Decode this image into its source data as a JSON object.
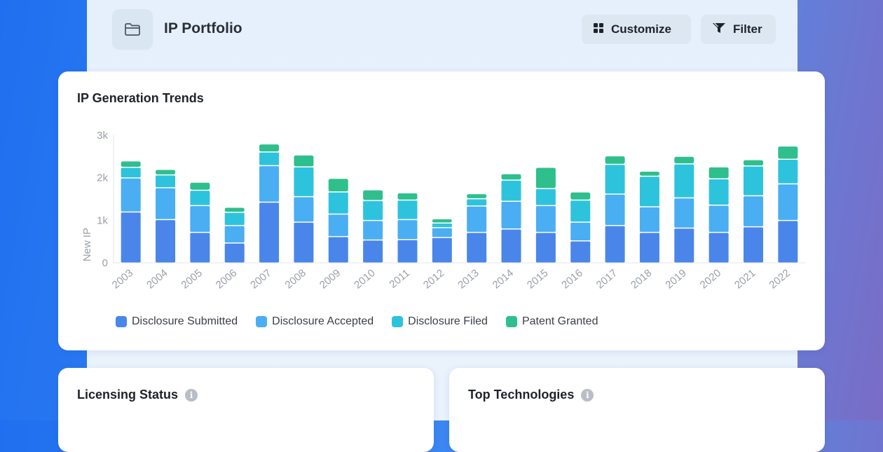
{
  "header": {
    "title": "IP Portfolio",
    "icon": "folder-icon",
    "buttons": {
      "customize_label": "Customize",
      "customize_icon": "grid-icon",
      "filter_label": "Filter",
      "filter_icon": "funnel-icon"
    }
  },
  "trend_card": {
    "title": "IP Generation Trends"
  },
  "chart_data": {
    "type": "bar",
    "stacked": true,
    "title": "IP Generation Trends",
    "ylabel": "New IP",
    "xlabel": "",
    "ylim": [
      0,
      3000
    ],
    "yticks": [
      "0",
      "1k",
      "2k",
      "3k"
    ],
    "ytick_values": [
      0,
      1000,
      2000,
      3000
    ],
    "grid": false,
    "legend_position": "bottom-left",
    "categories": [
      "2003",
      "2004",
      "2005",
      "2006",
      "2007",
      "2008",
      "2009",
      "2010",
      "2011",
      "2012",
      "2013",
      "2014",
      "2015",
      "2016",
      "2017",
      "2018",
      "2019",
      "2020",
      "2021",
      "2022"
    ],
    "series": [
      {
        "name": "Disclosure Submitted",
        "color": "#4a86ea",
        "values": [
          1200,
          1020,
          720,
          470,
          1430,
          960,
          620,
          540,
          550,
          600,
          720,
          800,
          720,
          520,
          880,
          720,
          820,
          720,
          850,
          1000
        ]
      },
      {
        "name": "Disclosure Accepted",
        "color": "#4aaef2",
        "values": [
          800,
          750,
          630,
          410,
          860,
          600,
          530,
          460,
          470,
          230,
          620,
          650,
          630,
          440,
          740,
          600,
          710,
          640,
          730,
          860
        ]
      },
      {
        "name": "Disclosure Filed",
        "color": "#2ec3dd",
        "values": [
          250,
          300,
          360,
          310,
          320,
          700,
          520,
          470,
          460,
          110,
          170,
          500,
          400,
          520,
          700,
          720,
          800,
          620,
          700,
          580
        ]
      },
      {
        "name": "Patent Granted",
        "color": "#2fbf8c",
        "values": [
          150,
          130,
          190,
          120,
          190,
          280,
          320,
          250,
          170,
          100,
          120,
          150,
          500,
          190,
          200,
          120,
          180,
          280,
          150,
          310
        ]
      }
    ]
  },
  "licensing_card": {
    "title": "Licensing Status",
    "icon": "info-icon",
    "icon_glyph": "i"
  },
  "tech_card": {
    "title": "Top Technologies",
    "icon": "info-icon",
    "icon_glyph": "i"
  }
}
